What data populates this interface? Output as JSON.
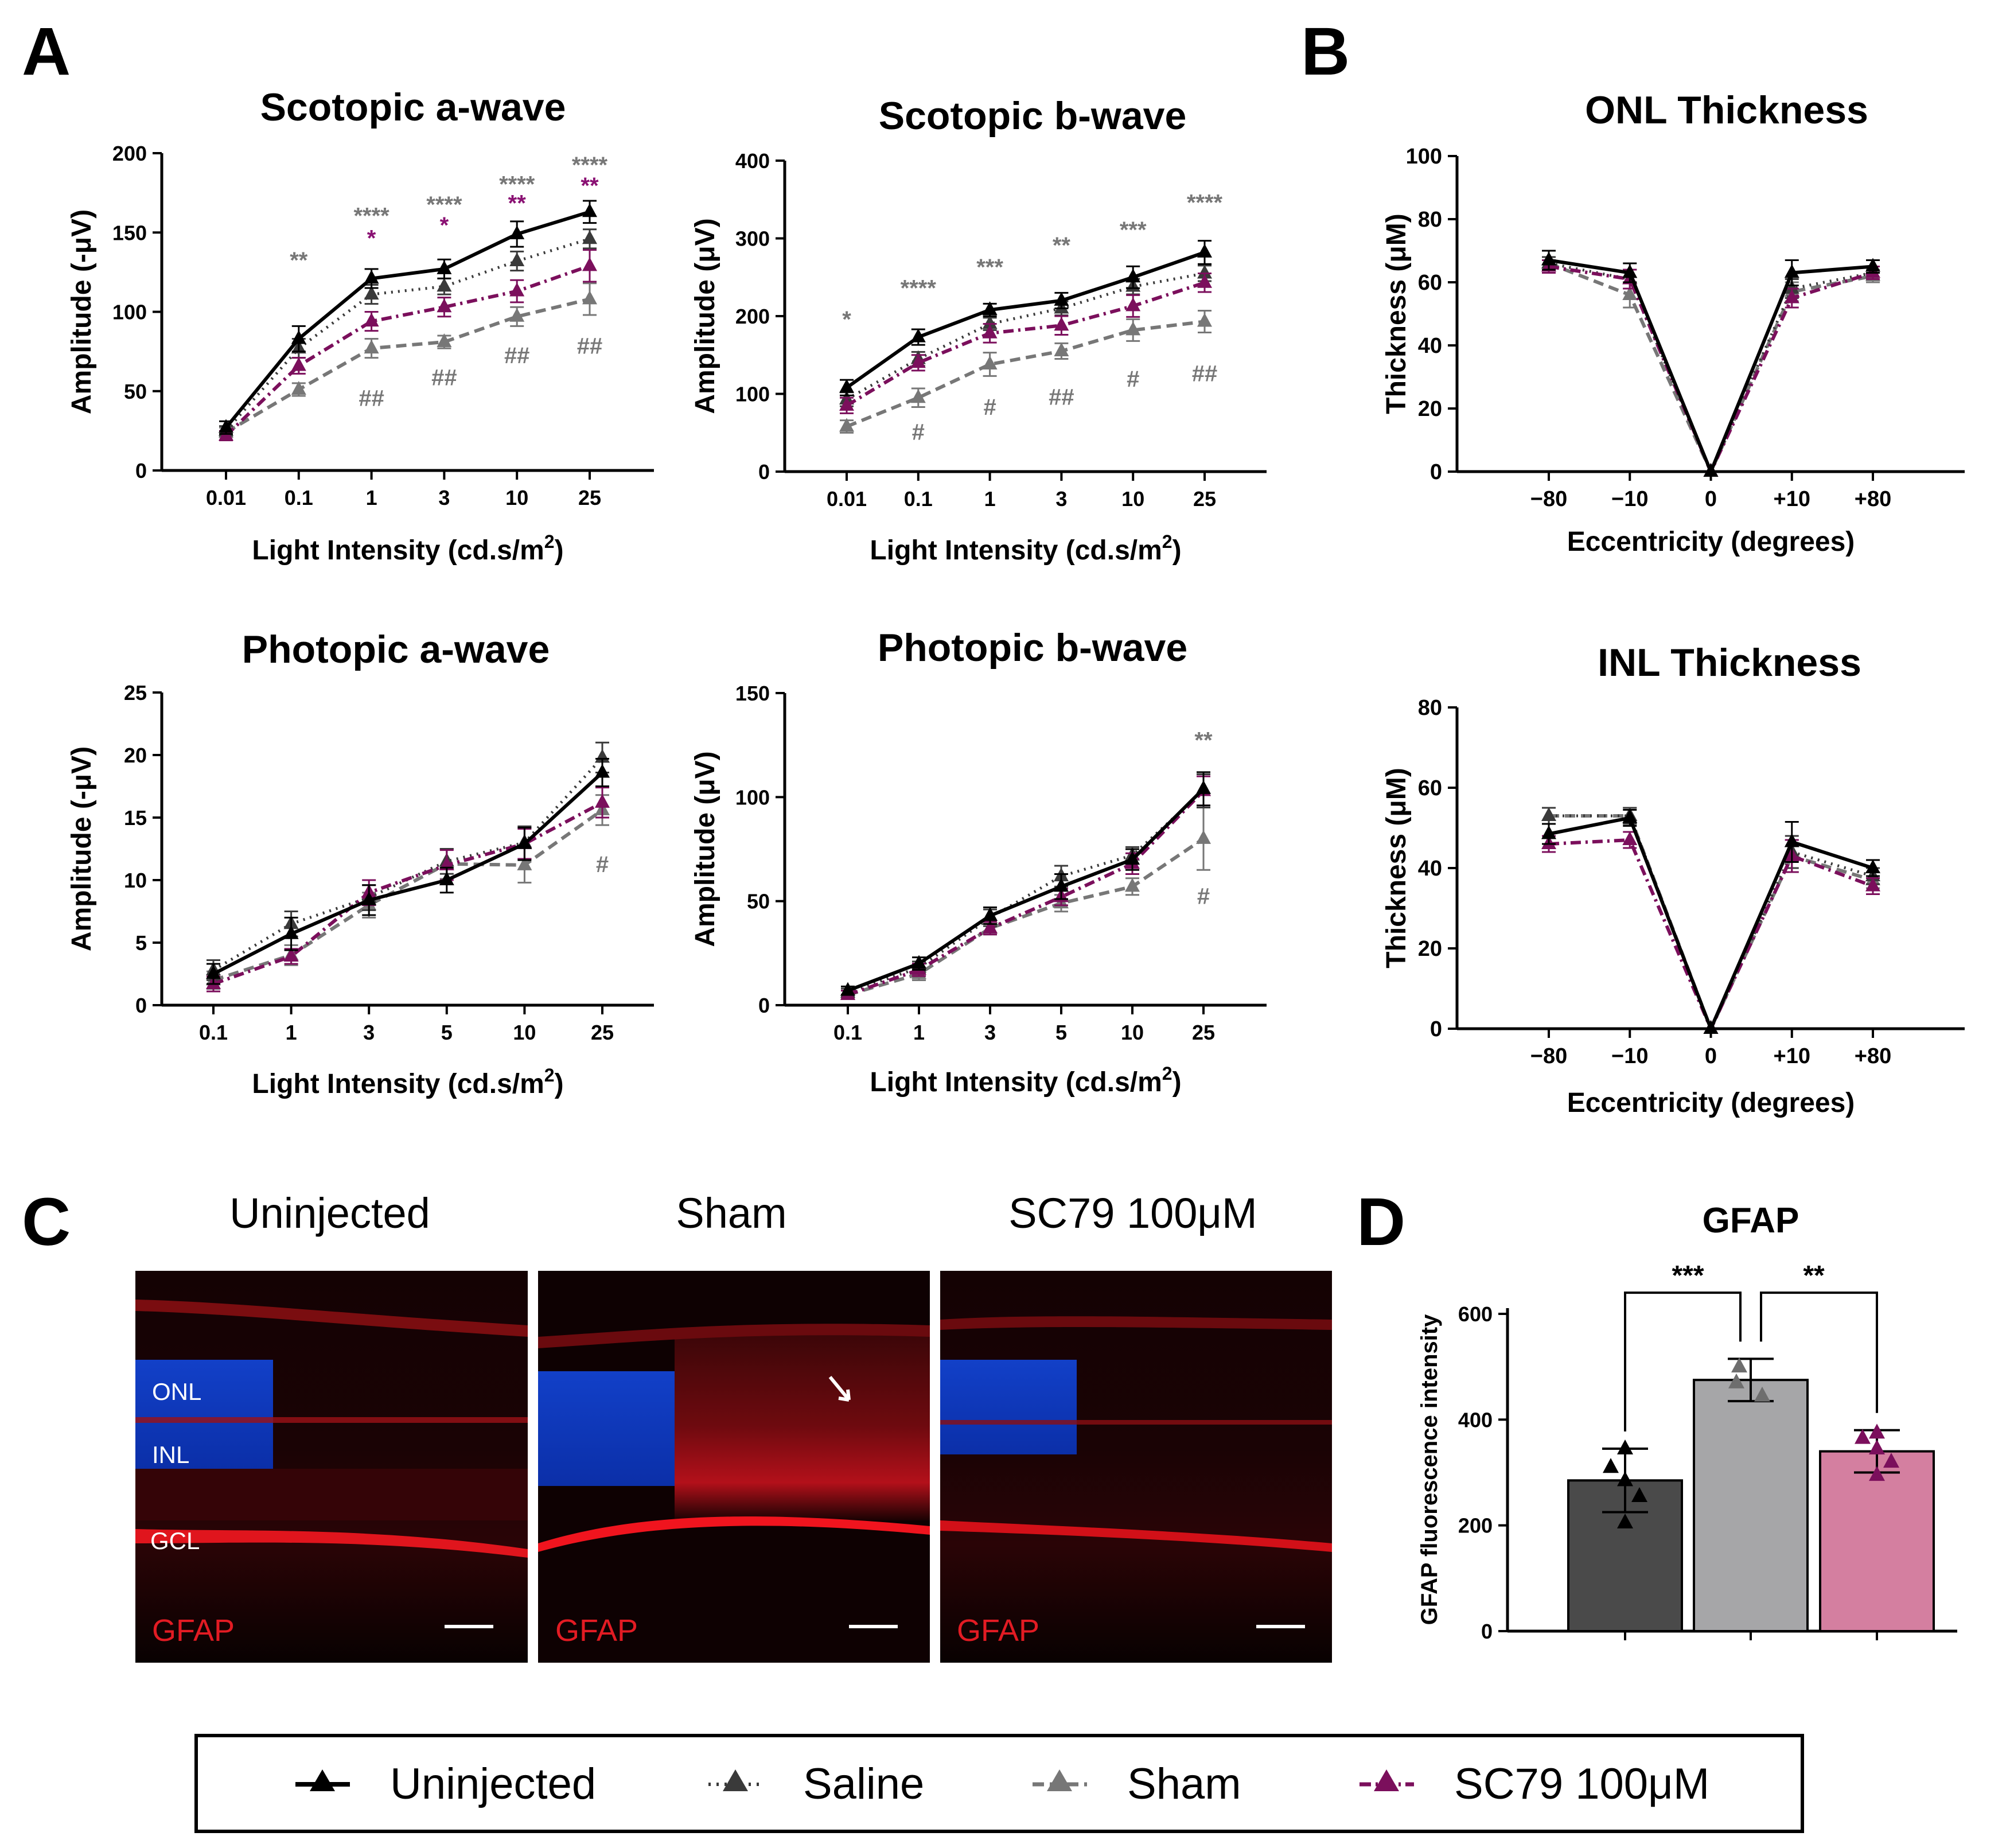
{
  "panel_letters": {
    "A": "A",
    "B": "B",
    "C": "C",
    "D": "D"
  },
  "colors": {
    "uninjected": "#000000",
    "saline": "#3a3a3a",
    "sham": "#777777",
    "sc79": "#7b0f5c",
    "bar_uninjected": "#4a4a4a",
    "bar_sham": "#a6a6a8",
    "bar_sc79": "#d47fa0",
    "sig_gray": "#777777",
    "sig_purple": "#8a1173"
  },
  "series_names": [
    "Uninjected",
    "Saline",
    "Sham",
    "SC79 100μM"
  ],
  "legend": {
    "items": [
      "Uninjected",
      "Saline",
      "Sham",
      "SC79 100μM"
    ]
  },
  "chart_data": [
    {
      "id": "scotopic_a",
      "type": "line",
      "title": "Scotopic a-wave",
      "xlabel": "Light Intensity (cd.s/m",
      "xlabel_sup": "2",
      "xlabel_end": ")",
      "ylabel": "Amplitude (-μV)",
      "categories": [
        "0.01",
        "0.1",
        "1",
        "3",
        "10",
        "25"
      ],
      "ylim": [
        0,
        200
      ],
      "yticks": [
        0,
        50,
        100,
        150,
        200
      ],
      "series": [
        {
          "name": "Uninjected",
          "values": [
            27,
            83,
            121,
            127,
            149,
            163
          ],
          "err": [
            4,
            8,
            6,
            6,
            8,
            7
          ]
        },
        {
          "name": "Saline",
          "values": [
            25,
            77,
            111,
            116,
            132,
            146
          ],
          "err": [
            3,
            6,
            6,
            5,
            6,
            6
          ]
        },
        {
          "name": "Sham",
          "values": [
            24,
            51,
            77,
            81,
            97,
            108
          ],
          "err": [
            3,
            4,
            6,
            4,
            6,
            10
          ]
        },
        {
          "name": "SC79 100μM",
          "values": [
            22,
            66,
            94,
            103,
            113,
            129
          ],
          "err": [
            3,
            5,
            6,
            6,
            7,
            10
          ]
        }
      ],
      "annotations": [
        {
          "x": "0.1",
          "y": 132,
          "text": "**",
          "tone": "gray"
        },
        {
          "x": "1",
          "y": 160,
          "text": "****",
          "tone": "gray"
        },
        {
          "x": "1",
          "y": 146,
          "text": "*",
          "tone": "purple"
        },
        {
          "x": "3",
          "y": 167,
          "text": "****",
          "tone": "gray"
        },
        {
          "x": "3",
          "y": 154,
          "text": "*",
          "tone": "purple"
        },
        {
          "x": "10",
          "y": 180,
          "text": "****",
          "tone": "gray"
        },
        {
          "x": "10",
          "y": 168,
          "text": "**",
          "tone": "purple"
        },
        {
          "x": "25",
          "y": 192,
          "text": "****",
          "tone": "gray"
        },
        {
          "x": "25",
          "y": 179,
          "text": "**",
          "tone": "purple"
        },
        {
          "x": "1",
          "y": 45,
          "text": "##",
          "tone": "gray"
        },
        {
          "x": "3",
          "y": 58,
          "text": "##",
          "tone": "gray"
        },
        {
          "x": "10",
          "y": 72,
          "text": "##",
          "tone": "gray"
        },
        {
          "x": "25",
          "y": 78,
          "text": "##",
          "tone": "gray"
        }
      ]
    },
    {
      "id": "scotopic_b",
      "type": "line",
      "title": "Scotopic b-wave",
      "xlabel": "Light Intensity (cd.s/m",
      "xlabel_sup": "2",
      "xlabel_end": ")",
      "ylabel": "Amplitude (μV)",
      "categories": [
        "0.01",
        "0.1",
        "1",
        "3",
        "10",
        "25"
      ],
      "ylim": [
        0,
        400
      ],
      "yticks": [
        0,
        100,
        200,
        300,
        400
      ],
      "series": [
        {
          "name": "Uninjected",
          "values": [
            108,
            173,
            208,
            220,
            250,
            282
          ],
          "err": [
            10,
            10,
            8,
            10,
            14,
            15
          ]
        },
        {
          "name": "Saline",
          "values": [
            93,
            145,
            190,
            210,
            238,
            255
          ],
          "err": [
            9,
            9,
            8,
            9,
            10,
            10
          ]
        },
        {
          "name": "Sham",
          "values": [
            58,
            95,
            138,
            155,
            182,
            193
          ],
          "err": [
            8,
            12,
            15,
            10,
            14,
            14
          ]
        },
        {
          "name": "SC79 100μM",
          "values": [
            85,
            140,
            178,
            188,
            213,
            243
          ],
          "err": [
            10,
            10,
            12,
            12,
            14,
            12
          ]
        }
      ],
      "annotations": [
        {
          "x": "0.01",
          "y": 195,
          "text": "*",
          "tone": "gray"
        },
        {
          "x": "0.1",
          "y": 235,
          "text": "****",
          "tone": "gray"
        },
        {
          "x": "1",
          "y": 262,
          "text": "***",
          "tone": "gray"
        },
        {
          "x": "3",
          "y": 290,
          "text": "**",
          "tone": "gray"
        },
        {
          "x": "10",
          "y": 310,
          "text": "***",
          "tone": "gray"
        },
        {
          "x": "25",
          "y": 345,
          "text": "****",
          "tone": "gray"
        },
        {
          "x": "0.1",
          "y": 50,
          "text": "#",
          "tone": "gray"
        },
        {
          "x": "1",
          "y": 82,
          "text": "#",
          "tone": "gray"
        },
        {
          "x": "3",
          "y": 95,
          "text": "##",
          "tone": "gray"
        },
        {
          "x": "10",
          "y": 118,
          "text": "#",
          "tone": "gray"
        },
        {
          "x": "25",
          "y": 125,
          "text": "##",
          "tone": "gray"
        }
      ]
    },
    {
      "id": "photopic_a",
      "type": "line",
      "title": "Photopic a-wave",
      "xlabel": "Light Intensity (cd.s/m",
      "xlabel_sup": "2",
      "xlabel_end": ")",
      "ylabel": "Amplitude (-μV)",
      "categories": [
        "0.1",
        "1",
        "3",
        "5",
        "10",
        "25"
      ],
      "ylim": [
        0,
        25
      ],
      "yticks": [
        0,
        5,
        10,
        15,
        20,
        25
      ],
      "series": [
        {
          "name": "Uninjected",
          "values": [
            2.5,
            5.7,
            8.4,
            10.0,
            12.9,
            18.6
          ],
          "err": [
            0.8,
            1.3,
            1.2,
            1.0,
            1.3,
            1.1
          ]
        },
        {
          "name": "Saline",
          "values": [
            2.8,
            6.5,
            8.6,
            11.5,
            13.0,
            19.8
          ],
          "err": [
            0.8,
            1.0,
            1.0,
            1.0,
            1.3,
            1.2
          ]
        },
        {
          "name": "Sham",
          "values": [
            2.0,
            4.0,
            8.0,
            11.3,
            11.2,
            15.6
          ],
          "err": [
            0.7,
            0.8,
            1.0,
            1.2,
            1.4,
            1.2
          ]
        },
        {
          "name": "SC79 100μM",
          "values": [
            1.7,
            3.9,
            9.0,
            11.2,
            12.9,
            16.2
          ],
          "err": [
            0.6,
            0.6,
            1.0,
            1.2,
            1.2,
            1.2
          ]
        }
      ],
      "annotations": [
        {
          "x": "25",
          "y": 11.2,
          "text": "#",
          "tone": "gray"
        }
      ]
    },
    {
      "id": "photopic_b",
      "type": "line",
      "title": "Photopic b-wave",
      "xlabel": "Light Intensity (cd.s/m",
      "xlabel_sup": "2",
      "xlabel_end": ")",
      "ylabel": "Amplitude (μV)",
      "categories": [
        "0.1",
        "1",
        "3",
        "5",
        "10",
        "25"
      ],
      "ylim": [
        0,
        150
      ],
      "yticks": [
        0,
        50,
        100,
        150
      ],
      "series": [
        {
          "name": "Uninjected",
          "values": [
            7,
            20,
            43,
            57,
            70,
            104
          ],
          "err": [
            2,
            3,
            4,
            6,
            5,
            8
          ]
        },
        {
          "name": "Saline",
          "values": [
            6,
            18,
            42,
            62,
            72,
            103
          ],
          "err": [
            2,
            3,
            4,
            5,
            4,
            8
          ]
        },
        {
          "name": "Sham",
          "values": [
            5,
            15,
            37,
            49,
            57,
            80
          ],
          "err": [
            2,
            3,
            3,
            4,
            4,
            15
          ]
        },
        {
          "name": "SC79 100μM",
          "values": [
            5,
            17,
            37,
            52,
            68,
            103
          ],
          "err": [
            2,
            3,
            3,
            4,
            5,
            7
          ]
        }
      ],
      "annotations": [
        {
          "x": "25",
          "y": 127,
          "text": "**",
          "tone": "gray"
        },
        {
          "x": "25",
          "y": 52,
          "text": "#",
          "tone": "gray"
        }
      ]
    },
    {
      "id": "onl",
      "type": "line",
      "title": "ONL Thickness",
      "xlabel": "Eccentricity (degrees)",
      "ylabel": "Thickness (μM)",
      "categories": [
        "−80",
        "−10",
        "0",
        "+10",
        "+80"
      ],
      "ylim": [
        0,
        100
      ],
      "yticks": [
        0,
        20,
        40,
        60,
        80,
        100
      ],
      "series": [
        {
          "name": "Uninjected",
          "values": [
            67,
            63,
            0,
            63,
            65
          ],
          "err": [
            3,
            3,
            0,
            4,
            2
          ]
        },
        {
          "name": "Saline",
          "values": [
            66,
            61,
            0,
            58,
            63
          ],
          "err": [
            2,
            3,
            0,
            3,
            2
          ]
        },
        {
          "name": "Sham",
          "values": [
            66,
            56,
            0,
            57,
            62
          ],
          "err": [
            2,
            4,
            0,
            3,
            2
          ]
        },
        {
          "name": "SC79 100μM",
          "values": [
            65,
            61,
            0,
            55,
            63
          ],
          "err": [
            2,
            3,
            0,
            3,
            2
          ]
        }
      ],
      "annotations": []
    },
    {
      "id": "inl",
      "type": "line",
      "title": "INL Thickness",
      "xlabel": "Eccentricity (degrees)",
      "ylabel": "Thickness (μM)",
      "categories": [
        "−80",
        "−10",
        "0",
        "+10",
        "+80"
      ],
      "ylim": [
        0,
        80
      ],
      "yticks": [
        0,
        20,
        40,
        60,
        80
      ],
      "series": [
        {
          "name": "Uninjected",
          "values": [
            48.5,
            52.5,
            0,
            46.5,
            40
          ],
          "err": [
            2.5,
            2,
            0,
            5,
            2
          ]
        },
        {
          "name": "Saline",
          "values": [
            53,
            53,
            0,
            44,
            38
          ],
          "err": [
            2,
            2,
            0,
            4,
            2
          ]
        },
        {
          "name": "Sham",
          "values": [
            53,
            53,
            0,
            43,
            37
          ],
          "err": [
            2,
            2,
            0,
            4,
            2
          ]
        },
        {
          "name": "SC79 100μM",
          "values": [
            46,
            47,
            0,
            43,
            35.5
          ],
          "err": [
            2,
            2,
            0,
            4,
            2
          ]
        }
      ],
      "annotations": []
    },
    {
      "id": "gfap",
      "type": "bar",
      "title": "GFAP",
      "ylabel": "GFAP fluorescence intensity",
      "categories": [
        "Uninjected",
        "Sham",
        "SC79 100μM"
      ],
      "ylim": [
        0,
        600
      ],
      "yticks": [
        0,
        200,
        400,
        600
      ],
      "values": [
        285,
        475,
        340
      ],
      "err": [
        60,
        40,
        40
      ],
      "points": [
        [
          345,
          310,
          285,
          255,
          205
        ],
        [
          500,
          470,
          445
        ],
        [
          375,
          365,
          345,
          320,
          295
        ]
      ],
      "significance": [
        {
          "from": 0,
          "to": 1,
          "text": "***",
          "y": 640
        },
        {
          "from": 1,
          "to": 2,
          "text": "**",
          "y": 640
        }
      ]
    }
  ],
  "micrographs": {
    "titles": [
      "Uninjected",
      "Sham",
      "SC79 100μM"
    ],
    "stain_label": "GFAP",
    "layer_labels": [
      "ONL",
      "INL",
      "GCL"
    ]
  }
}
